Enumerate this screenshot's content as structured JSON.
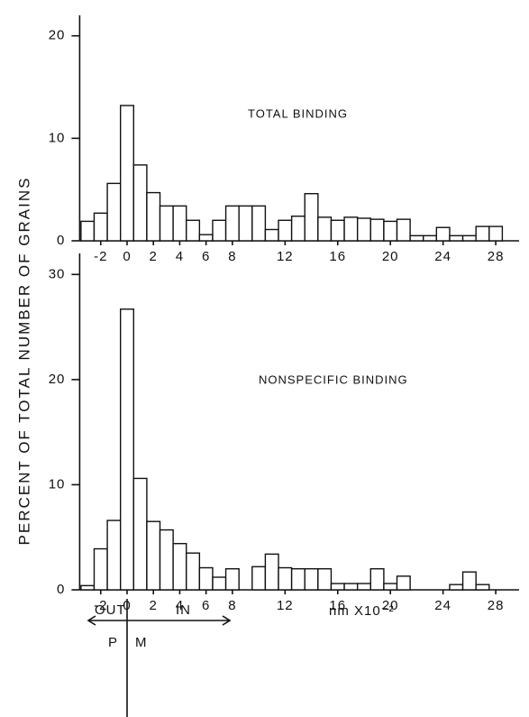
{
  "ylabel": "PERCENT OF TOTAL NUMBER OF GRAINS",
  "chart_data": [
    {
      "type": "histogram",
      "title": "TOTAL BINDING",
      "bins": [
        -3.5,
        -2.5,
        -1.5,
        -0.5,
        0.5,
        1.5,
        2.5,
        3.5,
        4.5,
        5.5,
        6.5,
        7.5,
        8.5,
        9.5,
        10.5,
        11.5,
        12.5,
        13.5,
        14.5,
        15.5,
        16.5,
        17.5,
        18.5,
        19.5,
        20.5,
        21.5,
        22.5,
        23.5,
        24.5,
        25.5,
        26.5,
        27.5,
        28.5
      ],
      "values": [
        1.9,
        2.7,
        5.6,
        13.2,
        7.4,
        4.7,
        3.4,
        3.4,
        2.0,
        0.6,
        2.0,
        3.4,
        3.4,
        3.4,
        1.1,
        2.0,
        2.4,
        4.6,
        2.3,
        2.0,
        2.3,
        2.2,
        2.1,
        1.9,
        2.1,
        0.5,
        0.5,
        1.3,
        0.5,
        0.5,
        1.4,
        1.4
      ],
      "color": "#ffffff",
      "xlim": [
        -3.6,
        29.5
      ],
      "xticks": [
        -2,
        0,
        2,
        4,
        6,
        8,
        12,
        16,
        20,
        24,
        28
      ],
      "ylim": [
        0,
        22
      ],
      "yticks": [
        0,
        10,
        20
      ]
    },
    {
      "type": "histogram",
      "title": "NONSPECIFIC BINDING",
      "xlabel": "nm X10⁻²",
      "annotations": [
        "OUT",
        "IN",
        "P",
        "M"
      ],
      "bins": [
        -3.5,
        -2.5,
        -1.5,
        -0.5,
        0.5,
        1.5,
        2.5,
        3.5,
        4.5,
        5.5,
        6.5,
        7.5,
        8.5,
        9.5,
        10.5,
        11.5,
        12.5,
        13.5,
        14.5,
        15.5,
        16.5,
        17.5,
        18.5,
        19.5,
        20.5,
        21.5,
        22.5,
        23.5,
        24.5,
        25.5,
        26.5,
        27.5,
        28.5
      ],
      "values": [
        0.4,
        3.9,
        6.6,
        26.7,
        10.6,
        6.5,
        5.7,
        4.4,
        3.5,
        2.1,
        1.2,
        2.0,
        0,
        2.2,
        3.4,
        2.1,
        2.0,
        2.0,
        2.0,
        0.6,
        0.6,
        0.6,
        2.0,
        0.6,
        1.3,
        0,
        0,
        0,
        0.5,
        1.7,
        0.5,
        0
      ],
      "color": "#ffffff",
      "xlim": [
        -3.6,
        29.5
      ],
      "xticks": [
        -2,
        0,
        2,
        4,
        6,
        8,
        12,
        16,
        20,
        24,
        28
      ],
      "ylim": [
        0,
        32
      ],
      "yticks": [
        0,
        10,
        20,
        30
      ]
    }
  ]
}
